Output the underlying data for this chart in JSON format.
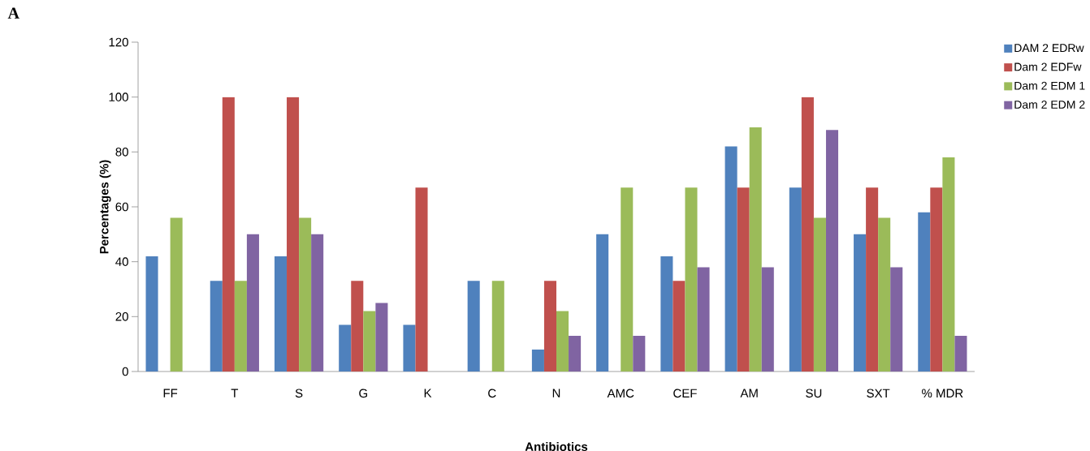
{
  "chart_data": {
    "type": "bar",
    "xlabel": "Antibiotics",
    "ylabel": "Percentages (%)",
    "annotations": [
      "A"
    ],
    "categories": [
      "FF",
      "T",
      "S",
      "G",
      "K",
      "C",
      "N",
      "AMC",
      "CEF",
      "AM",
      "SU",
      "SXT",
      "% MDR"
    ],
    "series": [
      {
        "name": "DAM 2 EDRw",
        "color": "#4f81bd",
        "values": [
          42,
          33,
          42,
          17,
          17,
          33,
          8,
          50,
          42,
          82,
          67,
          50,
          58
        ]
      },
      {
        "name": "Dam 2 EDFw",
        "color": "#c0504d",
        "values": [
          0,
          100,
          100,
          33,
          67,
          0,
          33,
          0,
          33,
          67,
          100,
          67,
          67
        ]
      },
      {
        "name": "Dam 2 EDM 1",
        "color": "#9bbb59",
        "values": [
          56,
          33,
          56,
          22,
          0,
          33,
          22,
          67,
          67,
          89,
          56,
          56,
          78
        ]
      },
      {
        "name": "Dam 2 EDM 2",
        "color": "#8064a2",
        "values": [
          0,
          50,
          50,
          25,
          0,
          0,
          13,
          13,
          38,
          38,
          88,
          38,
          13
        ]
      }
    ],
    "ylim": [
      0,
      120
    ],
    "yticks": [
      0,
      20,
      40,
      60,
      80,
      100,
      120
    ],
    "grid": false,
    "legend": "right"
  }
}
